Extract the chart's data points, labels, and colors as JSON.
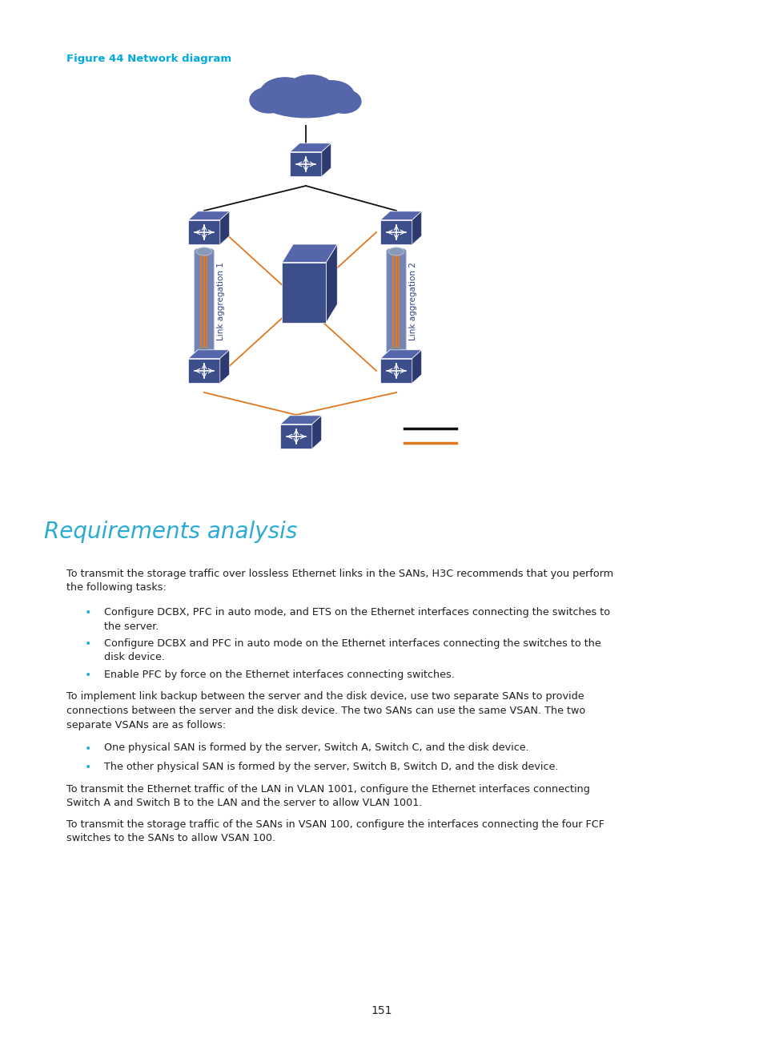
{
  "title": "Figure 44 Network diagram",
  "title_color": "#00AADD",
  "section_heading": "Requirements analysis",
  "section_heading_color": "#29ABD4",
  "page_number": "151",
  "bg_color": "#ffffff",
  "text_color": "#231f20",
  "bullet_color": "#29ABD4",
  "body_fs": 9.2,
  "heading_fs": 20,
  "title_fs": 9.5,
  "switch_color": "#3d4f8a",
  "switch_color_light": "#5566aa",
  "switch_color_dark": "#2d3a70",
  "cloud_color": "#5566aa",
  "server_color": "#3d4f8a",
  "tube_color": "#6677aa",
  "orange": "#E07820",
  "black_line": "#111111",
  "lag1_label": "Link aggregation 1",
  "lag2_label": "Link aggregation 2",
  "paragraphs": [
    "To transmit the storage traffic over lossless Ethernet links in the SANs, H3C recommends that you perform the following tasks:",
    "To implement link backup between the server and the disk device, use two separate SANs to provide connections between the server and the disk device. The two SANs can use the same VSAN. The two separate VSANs are as follows:",
    "To transmit the Ethernet traffic of the LAN in VLAN 1001, configure the Ethernet interfaces connecting Switch A and Switch B to the LAN and the server to allow VLAN 1001.",
    "To transmit the storage traffic of the SANs in VSAN 100, configure the interfaces connecting the four FCF switches to the SANs to allow VSAN 100."
  ],
  "bullets1": [
    "Configure DCBX, PFC in auto mode, and ETS on the Ethernet interfaces connecting the switches to\nthe server.",
    "Configure DCBX and PFC in auto mode on the Ethernet interfaces connecting the switches to the\ndisk device.",
    "Enable PFC by force on the Ethernet interfaces connecting switches."
  ],
  "bullets2": [
    "One physical SAN is formed by the server, Switch A, Switch C, and the disk device.",
    "The other physical SAN is formed by the server, Switch B, Switch D, and the disk device."
  ]
}
